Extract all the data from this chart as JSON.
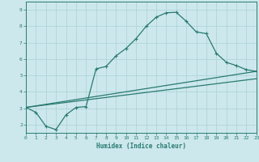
{
  "bg_color": "#cce8ec",
  "grid_color": "#b0d4d8",
  "line_color": "#2a7a70",
  "xlabel": "Humidex (Indice chaleur)",
  "xlim": [
    0,
    23
  ],
  "ylim": [
    1.5,
    9.5
  ],
  "yticks": [
    2,
    3,
    4,
    5,
    6,
    7,
    8,
    9
  ],
  "xticks": [
    0,
    1,
    2,
    3,
    4,
    5,
    6,
    7,
    8,
    9,
    10,
    11,
    12,
    13,
    14,
    15,
    16,
    17,
    18,
    19,
    20,
    21,
    22,
    23
  ],
  "curve1_x": [
    0,
    1,
    2,
    3,
    4,
    5,
    6,
    7,
    8,
    9,
    10,
    11,
    12,
    13,
    14,
    15,
    16,
    17,
    18,
    19,
    20,
    21,
    22,
    23
  ],
  "curve1_y": [
    3.05,
    2.75,
    1.9,
    1.7,
    2.6,
    3.05,
    3.1,
    5.4,
    5.55,
    6.2,
    6.65,
    7.25,
    8.0,
    8.55,
    8.82,
    8.85,
    8.3,
    7.65,
    7.55,
    6.35,
    5.8,
    5.6,
    5.35,
    5.25
  ],
  "curve2_x": [
    0,
    23
  ],
  "curve2_y": [
    3.05,
    5.25
  ],
  "curve3_x": [
    0,
    23
  ],
  "curve3_y": [
    3.05,
    4.8
  ],
  "marker_size": 3.5,
  "linewidth": 0.9
}
